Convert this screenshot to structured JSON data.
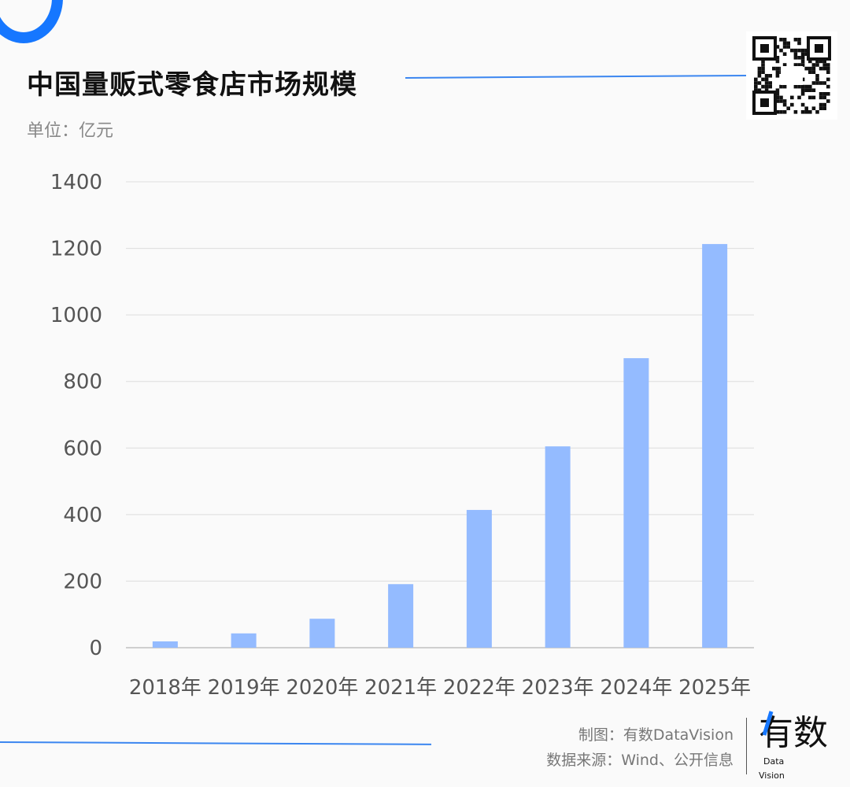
{
  "title": "中国量贩式零食店市场规模",
  "unit": "单位：亿元",
  "credit_maker": "制图：有数DataVision",
  "credit_source": "数据来源：Wind、公开信息",
  "logo_text": "有数 Data Vision",
  "colors": {
    "bar": "#94bbff",
    "accent": "#1677ff",
    "grid": "#dddddd"
  },
  "chart_data": {
    "type": "bar",
    "title": "中国量贩式零食店市场规模",
    "ylabel": "单位：亿元",
    "xlabel": "",
    "categories": [
      "2018年",
      "2019年",
      "2020年",
      "2021年",
      "2022年",
      "2023年",
      "2024年",
      "2025年"
    ],
    "values": [
      19,
      43,
      87,
      191,
      414,
      605,
      870,
      1213
    ],
    "ylim": [
      0,
      1400
    ],
    "yticks": [
      0,
      200,
      400,
      600,
      800,
      1000,
      1200,
      1400
    ],
    "grid": true
  }
}
